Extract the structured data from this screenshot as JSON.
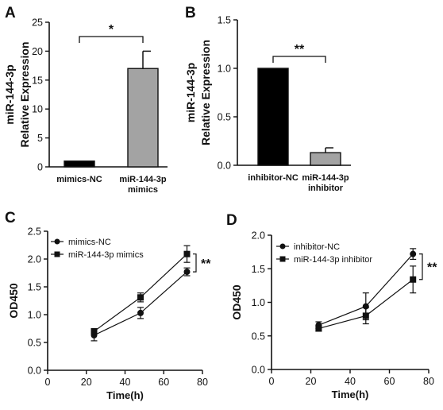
{
  "chart_data": [
    {
      "panel": "A",
      "type": "bar",
      "ylabel_line1": "miR-144-3p",
      "ylabel_line2": "Relative Expression",
      "categories": [
        {
          "line1": "mimics-NC",
          "line2": ""
        },
        {
          "line1": "miR-144-3p",
          "line2": "mimics"
        }
      ],
      "values": [
        1,
        17
      ],
      "errors": [
        0,
        3
      ],
      "colors": [
        "#000000",
        "#a3a3a3"
      ],
      "ylim": [
        0,
        25
      ],
      "yticks": [
        "0",
        "5",
        "10",
        "15",
        "20",
        "25"
      ],
      "significance": "*"
    },
    {
      "panel": "B",
      "type": "bar",
      "ylabel_line1": "miR-144-3p",
      "ylabel_line2": "Relative Expression",
      "categories": [
        {
          "line1": "inhibitor-NC",
          "line2": ""
        },
        {
          "line1": "miR-144-3p",
          "line2": "inhibitor"
        }
      ],
      "values": [
        1.0,
        0.13
      ],
      "errors": [
        0,
        0.05
      ],
      "colors": [
        "#000000",
        "#a3a3a3"
      ],
      "ylim": [
        0,
        1.5
      ],
      "yticks": [
        "0.0",
        "0.5",
        "1.0",
        "1.5"
      ],
      "significance": "**"
    },
    {
      "panel": "C",
      "type": "line",
      "ylabel": "OD450",
      "xlabel": "Time(h)",
      "xlim": [
        0,
        80
      ],
      "ylim": [
        0,
        2.5
      ],
      "xticks": [
        "0",
        "20",
        "40",
        "60",
        "80"
      ],
      "yticks": [
        "0.0",
        "0.5",
        "1.0",
        "1.5",
        "2.0",
        "2.5"
      ],
      "x": [
        24,
        48,
        72
      ],
      "legend": "top-left",
      "significance": "**",
      "series": [
        {
          "name": "mimics-NC",
          "marker": "circle",
          "values": [
            0.63,
            1.03,
            1.77
          ],
          "errors": [
            0.1,
            0.1,
            0.07
          ]
        },
        {
          "name": "miR-144-3p mimics",
          "marker": "square",
          "values": [
            0.7,
            1.31,
            2.09
          ],
          "errors": [
            0.05,
            0.08,
            0.15
          ]
        }
      ]
    },
    {
      "panel": "D",
      "type": "line",
      "ylabel": "OD450",
      "xlabel": "Time(h)",
      "xlim": [
        0,
        80
      ],
      "ylim": [
        0,
        2.0
      ],
      "xticks": [
        "0",
        "20",
        "40",
        "60",
        "80"
      ],
      "yticks": [
        "0.0",
        "0.5",
        "1.0",
        "1.5",
        "2.0"
      ],
      "x": [
        24,
        48,
        72
      ],
      "legend": "top-left",
      "significance": "**",
      "series": [
        {
          "name": "inhibitor-NC",
          "marker": "circle",
          "values": [
            0.66,
            0.94,
            1.72
          ],
          "errors": [
            0.05,
            0.2,
            0.08
          ]
        },
        {
          "name": "miR-144-3p inhibitor",
          "marker": "square",
          "values": [
            0.61,
            0.8,
            1.34
          ],
          "errors": [
            0.04,
            0.12,
            0.2
          ]
        }
      ]
    }
  ]
}
